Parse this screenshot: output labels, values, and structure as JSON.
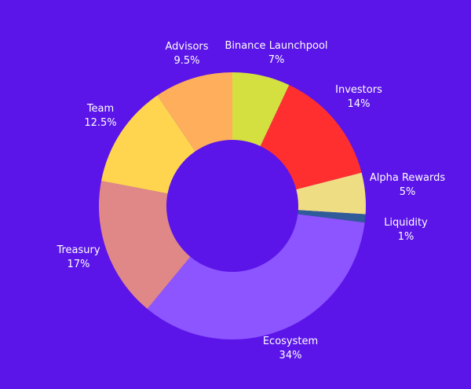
{
  "chart_data": {
    "type": "pie",
    "donut": true,
    "title": "",
    "slices": [
      {
        "label": "Binance Launchpool",
        "value": 7,
        "value_label": "7%",
        "color": "#d4df40"
      },
      {
        "label": "Investors",
        "value": 14,
        "value_label": "14%",
        "color": "#ff2f2f"
      },
      {
        "label": "Alpha Rewards",
        "value": 5,
        "value_label": "5%",
        "color": "#efdd84"
      },
      {
        "label": "Liquidity",
        "value": 1,
        "value_label": "1%",
        "color": "#2f5b9a"
      },
      {
        "label": "Ecosystem",
        "value": 34,
        "value_label": "34%",
        "color": "#8c55ff"
      },
      {
        "label": "Treasury",
        "value": 17,
        "value_label": "17%",
        "color": "#e08787"
      },
      {
        "label": "Team",
        "value": 12.5,
        "value_label": "12.5%",
        "color": "#ffd54f"
      },
      {
        "label": "Advisors",
        "value": 9.5,
        "value_label": "9.5%",
        "color": "#ffae5c"
      }
    ],
    "start_angle_deg": 0,
    "direction": "clockwise",
    "legend": "none",
    "background_color": "#5b15e8"
  }
}
